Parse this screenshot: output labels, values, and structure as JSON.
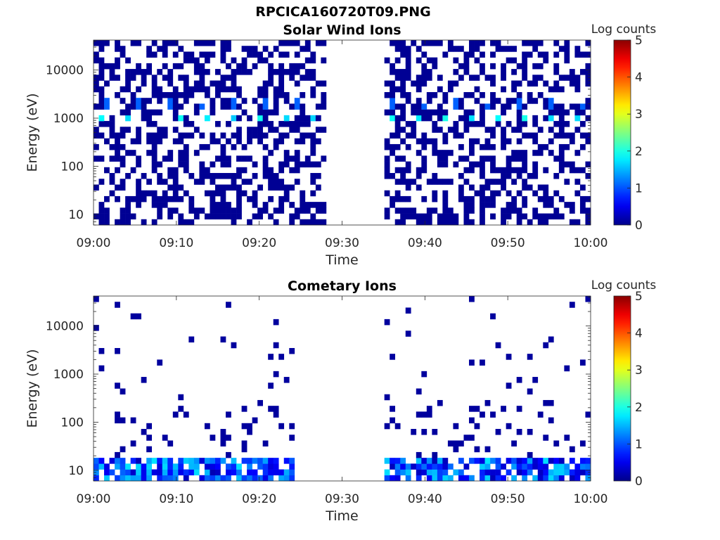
{
  "figure": {
    "title": "RPCICA160720T09.PNG"
  },
  "chart_data": [
    {
      "type": "heatmap",
      "title": "Solar Wind Ions",
      "xlabel": "Time",
      "ylabel": "Energy (eV)",
      "x_ticks": [
        "09:00",
        "09:10",
        "09:20",
        "09:30",
        "09:40",
        "09:50",
        "10:00"
      ],
      "x_range": [
        "09:00",
        "10:00"
      ],
      "y_scale": "log",
      "y_ticks": [
        10,
        100,
        1000,
        10000
      ],
      "y_tick_labels": [
        "10",
        "100",
        "1000",
        "10000"
      ],
      "y_range": [
        6,
        42000
      ],
      "colorbar": {
        "label": "Log counts",
        "ticks": [
          0,
          1,
          2,
          3,
          4,
          5
        ],
        "range": [
          0,
          5
        ],
        "colormap": "jet"
      },
      "data_gaps": [
        [
          "09:28",
          "09:35"
        ]
      ],
      "notes_visible": "patchy low counts (~0) across all energies; peaks ~1.5-2 log counts near 800 eV"
    },
    {
      "type": "heatmap",
      "title": "Cometary Ions",
      "xlabel": "Time",
      "ylabel": "Energy (eV)",
      "x_ticks": [
        "09:00",
        "09:10",
        "09:20",
        "09:30",
        "09:40",
        "09:50",
        "10:00"
      ],
      "x_range": [
        "09:00",
        "10:00"
      ],
      "y_scale": "log",
      "y_ticks": [
        10,
        100,
        1000,
        10000
      ],
      "y_tick_labels": [
        "10",
        "100",
        "1000",
        "10000"
      ],
      "y_range": [
        6,
        42000
      ],
      "colorbar": {
        "label": "Log counts",
        "ticks": [
          0,
          1,
          2,
          3,
          4,
          5
        ],
        "range": [
          0,
          5
        ],
        "colormap": "jet"
      },
      "data_gaps": [
        [
          "09:24",
          "09:35"
        ]
      ],
      "notes_visible": "sparse counts above 30 eV; dense 1-2 log counts below ~20 eV"
    }
  ]
}
